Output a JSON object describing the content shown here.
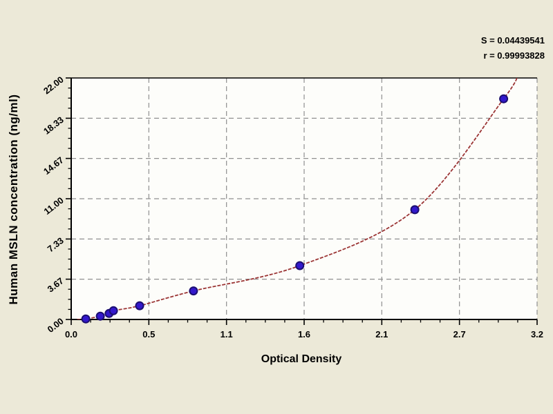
{
  "stats": {
    "line1": "S = 0.04439541",
    "line2": "r = 0.99993828"
  },
  "chart_data": {
    "type": "scatter",
    "title": "",
    "xlabel": "Optical Density",
    "ylabel": "Human MSLN concentration (ng/ml)",
    "xlim": [
      0,
      3.2
    ],
    "ylim": [
      0,
      22
    ],
    "x_ticks": [
      "0.0",
      "0.5",
      "1.1",
      "1.6",
      "2.1",
      "2.7",
      "3.2"
    ],
    "x_tick_values": [
      0,
      0.5333,
      1.0667,
      1.6,
      2.1333,
      2.6667,
      3.2
    ],
    "y_ticks": [
      "0.00",
      "3.67",
      "7.33",
      "11.00",
      "14.67",
      "18.33",
      "22.00"
    ],
    "y_tick_values": [
      0,
      3.67,
      7.33,
      11.0,
      14.67,
      18.33,
      22.0
    ],
    "minor_ticks_per_interval": 3,
    "grid": "dashed",
    "legend": "none",
    "points": [
      {
        "od": 0.1,
        "conc": 0.05
      },
      {
        "od": 0.2,
        "conc": 0.3
      },
      {
        "od": 0.26,
        "conc": 0.55
      },
      {
        "od": 0.29,
        "conc": 0.8
      },
      {
        "od": 0.47,
        "conc": 1.25
      },
      {
        "od": 0.84,
        "conc": 2.6
      },
      {
        "od": 1.57,
        "conc": 4.9
      },
      {
        "od": 2.36,
        "conc": 10.0
      },
      {
        "od": 2.97,
        "conc": 20.1
      }
    ],
    "curve": {
      "start": {
        "od": 0.04,
        "conc": 0.0
      },
      "end": {
        "od": 3.07,
        "conc": 22.4
      }
    },
    "colors": {
      "page_bg": "#ECE9D8",
      "plot_bg": "#FDFDFA",
      "grid": "#8F8F8F",
      "frame": "#000000",
      "curve": "#9B3434",
      "marker_fill": "#3318CC",
      "marker_edge": "#1B0E70",
      "text": "#000000"
    }
  }
}
